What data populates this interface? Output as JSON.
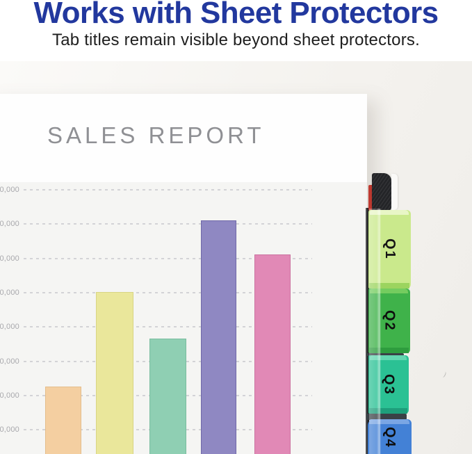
{
  "header": {
    "title": "Works with Sheet Protectors",
    "subtitle": "Tab titles remain visible beyond sheet protectors.",
    "title_color": "#22389E"
  },
  "sheet": {
    "report_title": "SALES REPORT"
  },
  "chart_data": {
    "type": "bar",
    "title": "SALES REPORT",
    "categories": [
      "",
      "",
      "",
      "",
      ""
    ],
    "values": [
      22500,
      50000,
      36500,
      71000,
      61000
    ],
    "bar_colors": [
      "#F4CFA1",
      "#EAE79B",
      "#8FCFB3",
      "#8F88C2",
      "#E189B6"
    ],
    "bar_border_colors": [
      "#E4BD8C",
      "#D8D584",
      "#79BD9F",
      "#6F68A8",
      "#CB72A0"
    ],
    "ytick_labels_visible": [
      "0,000",
      "0,000",
      "0,000",
      "0,000",
      "0,000",
      "0,000",
      "0,000",
      "0,000"
    ],
    "ytick_step": 10000,
    "ylim": [
      0,
      85000
    ],
    "gridline_style": "dashed",
    "legend": "none",
    "xlabel": "",
    "ylabel": ""
  },
  "tabs": [
    {
      "label": "Q1",
      "face": "#CAE98C",
      "highlight": "#E8F6C6",
      "edge": "#9CD45F",
      "text_color": "#151515"
    },
    {
      "label": "Q2",
      "face": "#3FB24A",
      "highlight": "#74CC5F",
      "edge": "#2E9C3E",
      "text_color": "#0E0E0E"
    },
    {
      "label": "Q3",
      "face": "#2BC194",
      "highlight": "#63D6B0",
      "edge": "#1E9F7B",
      "text_color": "#0E0E0E"
    },
    {
      "label": "Q4",
      "face": "#4381D6",
      "highlight": "#7AA6E4",
      "edge": "#2F63B4",
      "text_color": "#0E0E0E"
    }
  ],
  "binder": {
    "spine_color": "#232427",
    "red_page_edge_color": "#BF3A31",
    "stacked_page_edge_color": "#3C3D3F"
  }
}
